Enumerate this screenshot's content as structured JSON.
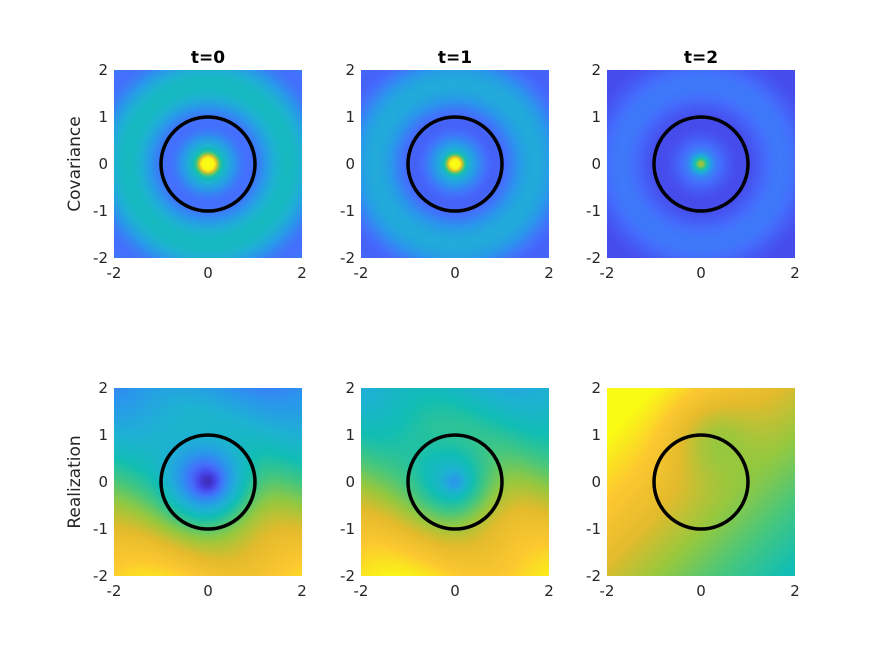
{
  "figure": {
    "row_labels": [
      "Covariance",
      "Realization"
    ],
    "column_titles": [
      "t=0",
      "t=1",
      "t=2"
    ],
    "colormap": "parula",
    "circle_color": "#000000"
  },
  "chart_data": [
    {
      "type": "heatmap",
      "title": "t=0",
      "ylabel": "Covariance",
      "xlim": [
        -2,
        2
      ],
      "ylim": [
        -2,
        2
      ],
      "xticks": [
        "-2",
        "0",
        "2"
      ],
      "yticks": [
        "2",
        "1",
        "0",
        "-1",
        "-2"
      ],
      "pattern": "radial-rings",
      "center_value": 1.0,
      "ring_amplitude": 0.45,
      "background_level": 0.3,
      "circle": {
        "cx": 0,
        "cy": 0,
        "r": 1
      }
    },
    {
      "type": "heatmap",
      "title": "t=1",
      "ylabel": "",
      "xlim": [
        -2,
        2
      ],
      "ylim": [
        -2,
        2
      ],
      "xticks": [
        "-2",
        "0",
        "2"
      ],
      "yticks": [
        "2",
        "1",
        "0",
        "-1",
        "-2"
      ],
      "pattern": "radial-rings",
      "center_value": 0.85,
      "ring_amplitude": 0.35,
      "background_level": 0.27,
      "circle": {
        "cx": 0,
        "cy": 0,
        "r": 1
      }
    },
    {
      "type": "heatmap",
      "title": "t=2",
      "ylabel": "",
      "xlim": [
        -2,
        2
      ],
      "ylim": [
        -2,
        2
      ],
      "xticks": [
        "-2",
        "0",
        "2"
      ],
      "yticks": [
        "2",
        "1",
        "0",
        "-1",
        "-2"
      ],
      "pattern": "radial-rings",
      "center_value": 0.45,
      "ring_amplitude": 0.18,
      "background_level": 0.22,
      "circle": {
        "cx": 0,
        "cy": 0,
        "r": 1
      }
    },
    {
      "type": "heatmap",
      "title": "",
      "ylabel": "Realization",
      "xlim": [
        -2,
        2
      ],
      "ylim": [
        -2,
        2
      ],
      "xticks": [
        "-2",
        "0",
        "2"
      ],
      "yticks": [
        "2",
        "1",
        "0",
        "-1",
        "-2"
      ],
      "pattern": "field-with-dip",
      "center_value": 0.1,
      "mean_level": 0.6,
      "gradient": 0.3,
      "circle": {
        "cx": 0,
        "cy": 0,
        "r": 1
      }
    },
    {
      "type": "heatmap",
      "title": "",
      "ylabel": "",
      "xlim": [
        -2,
        2
      ],
      "ylim": [
        -2,
        2
      ],
      "xticks": [
        "-2",
        "0",
        "2"
      ],
      "yticks": [
        "2",
        "1",
        "0",
        "-1",
        "-2"
      ],
      "pattern": "field-with-dip",
      "center_value": 0.4,
      "mean_level": 0.68,
      "gradient": 0.26,
      "circle": {
        "cx": 0,
        "cy": 0,
        "r": 1
      }
    },
    {
      "type": "heatmap",
      "title": "",
      "ylabel": "",
      "xlim": [
        -2,
        2
      ],
      "ylim": [
        -2,
        2
      ],
      "xticks": [
        "-2",
        "0",
        "2"
      ],
      "yticks": [
        "2",
        "1",
        "0",
        "-1",
        "-2"
      ],
      "pattern": "diagonal-gradient",
      "center_value": 0.6,
      "mean_level": 0.78,
      "gradient": 0.25,
      "circle": {
        "cx": 0,
        "cy": 0,
        "r": 1
      }
    }
  ]
}
